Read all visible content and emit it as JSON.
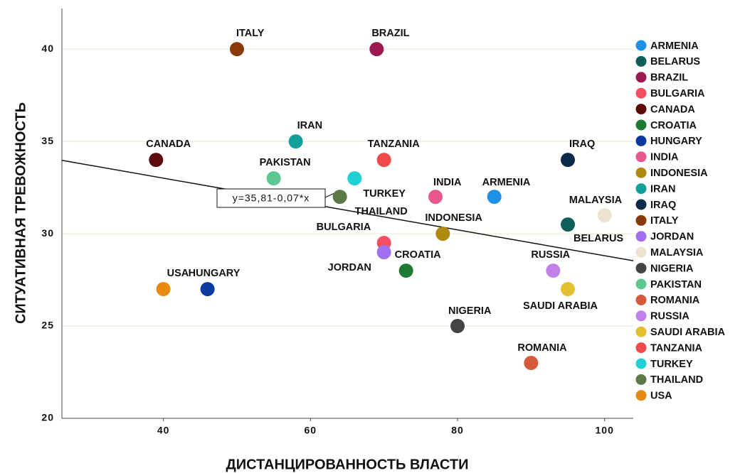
{
  "chart_data": {
    "type": "scatter",
    "x_label": "ДИСТАНЦИРОВАННОСТЬ ВЛАСТИ",
    "y_label": "СИТУАТИВНАЯ ТРЕВОЖНОСТЬ",
    "xlim": [
      26.2,
      103.9
    ],
    "ylim": [
      20,
      42.2
    ],
    "xticks": [
      40,
      60,
      80,
      100
    ],
    "yticks": [
      20,
      25,
      30,
      35,
      40
    ],
    "grid": true,
    "legend": "right",
    "fit": {
      "intercept": 35.81,
      "slope": -0.07,
      "label": "y=35,81-0,07*x"
    },
    "series": [
      {
        "name": "ARMENIA",
        "color": "#1e90e6",
        "x": [
          85
        ],
        "values": [
          32
        ]
      },
      {
        "name": "BELARUS",
        "color": "#0e5e5a",
        "x": [
          95
        ],
        "values": [
          30.5
        ]
      },
      {
        "name": "BRAZIL",
        "color": "#9c1a52",
        "x": [
          69
        ],
        "values": [
          40
        ]
      },
      {
        "name": "BULGARIA",
        "color": "#f25060",
        "x": [
          70
        ],
        "values": [
          29.5
        ]
      },
      {
        "name": "CANADA",
        "color": "#5a0a0a",
        "x": [
          39
        ],
        "values": [
          34
        ]
      },
      {
        "name": "CROATIA",
        "color": "#1e7a32",
        "x": [
          73
        ],
        "values": [
          28
        ]
      },
      {
        "name": "HUNGARY",
        "color": "#0a3aa0",
        "x": [
          46
        ],
        "values": [
          27
        ]
      },
      {
        "name": "INDIA",
        "color": "#e8588e",
        "x": [
          77
        ],
        "values": [
          32
        ]
      },
      {
        "name": "INDONESIA",
        "color": "#b08a10",
        "x": [
          78
        ],
        "values": [
          30
        ]
      },
      {
        "name": "IRAN",
        "color": "#12a09a",
        "x": [
          58
        ],
        "values": [
          35
        ]
      },
      {
        "name": "IRAQ",
        "color": "#0a2a4a",
        "x": [
          95
        ],
        "values": [
          34
        ]
      },
      {
        "name": "ITALY",
        "color": "#8a3a0a",
        "x": [
          50
        ],
        "values": [
          40
        ]
      },
      {
        "name": "JORDAN",
        "color": "#a070f0",
        "x": [
          70
        ],
        "values": [
          29
        ]
      },
      {
        "name": "MALAYSIA",
        "color": "#ece4d0",
        "x": [
          100
        ],
        "values": [
          31
        ]
      },
      {
        "name": "NIGERIA",
        "color": "#444444",
        "x": [
          80
        ],
        "values": [
          25
        ]
      },
      {
        "name": "PAKISTAN",
        "color": "#5cc890",
        "x": [
          55
        ],
        "values": [
          33
        ]
      },
      {
        "name": "ROMANIA",
        "color": "#d45a3a",
        "x": [
          90
        ],
        "values": [
          23
        ]
      },
      {
        "name": "RUSSIA",
        "color": "#c080e8",
        "x": [
          93
        ],
        "values": [
          28
        ]
      },
      {
        "name": "SAUDI ARABIA",
        "color": "#e4c030",
        "x": [
          95
        ],
        "values": [
          27
        ]
      },
      {
        "name": "TANZANIA",
        "color": "#f04a4a",
        "x": [
          70
        ],
        "values": [
          34
        ]
      },
      {
        "name": "TURKEY",
        "color": "#20d0d4",
        "x": [
          66
        ],
        "values": [
          33
        ]
      },
      {
        "name": "THAILAND",
        "color": "#5a7a48",
        "x": [
          64
        ],
        "values": [
          32
        ]
      },
      {
        "name": "USA",
        "color": "#e88a10",
        "x": [
          40
        ],
        "values": [
          27
        ]
      }
    ]
  }
}
